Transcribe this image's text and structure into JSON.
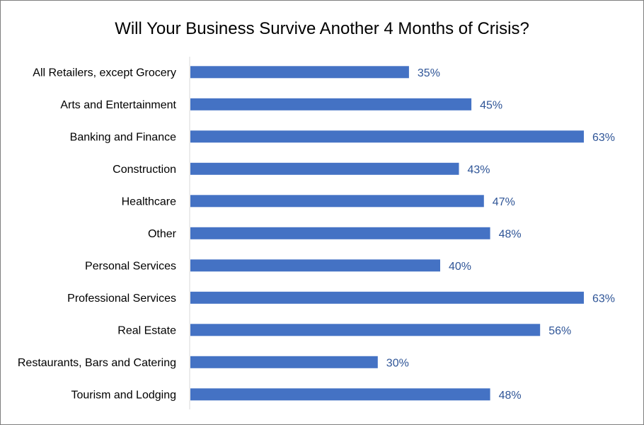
{
  "chart_data": {
    "type": "bar",
    "orientation": "horizontal",
    "title": "Will Your Business Survive Another 4 Months of Crisis?",
    "xlabel": "",
    "ylabel": "",
    "xlim": [
      0,
      63
    ],
    "grid": false,
    "legend": "none",
    "bar_color": "#4472C4",
    "label_color": "#2F5597",
    "categories": [
      "All Retailers, except Grocery",
      "Arts and Entertainment",
      "Banking and Finance",
      "Construction",
      "Healthcare",
      "Other",
      "Personal Services",
      "Professional Services",
      "Real Estate",
      "Restaurants, Bars and Catering",
      "Tourism and Lodging"
    ],
    "values": [
      35,
      45,
      63,
      43,
      47,
      48,
      40,
      63,
      56,
      30,
      48
    ],
    "value_labels": [
      "35%",
      "45%",
      "63%",
      "43%",
      "47%",
      "48%",
      "40%",
      "63%",
      "56%",
      "30%",
      "48%"
    ]
  }
}
